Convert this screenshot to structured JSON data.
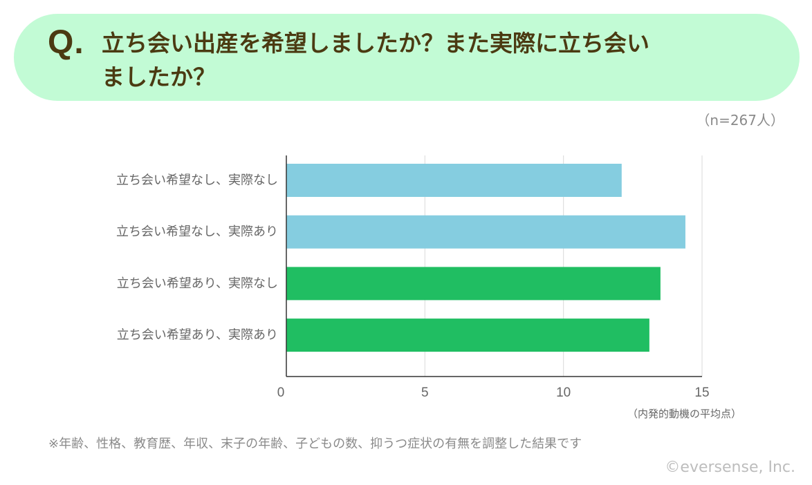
{
  "header": {
    "q_label": "Q.",
    "question_line1": "立ち会い出産を希望しましたか？また実際に立ち会い",
    "question_line2": "ましたか？"
  },
  "sample_note": "（n=267人）",
  "chart_data": {
    "type": "bar",
    "orientation": "horizontal",
    "categories": [
      "立ち会い希望なし、実際なし",
      "立ち会い希望なし、実際あり",
      "立ち会い希望あり、実際なし",
      "立ち会い希望あり、実際あり"
    ],
    "values": [
      12.1,
      14.4,
      13.5,
      13.1
    ],
    "bar_colors": [
      "#85cde0",
      "#85cde0",
      "#20be62",
      "#20be62"
    ],
    "xlim": [
      0,
      15
    ],
    "xticks": [
      0,
      5,
      10,
      15
    ],
    "xlabel": "（内発的動機の平均点）",
    "grid": true,
    "gridline_color": "#d9d9d9"
  },
  "footnote": "※年齢、性格、教育歴、年収、末子の年齢、子どもの数、抑うつ症状の有無を調整した結果です",
  "copyright": "©eversense, Inc.",
  "colors": {
    "header_bg": "#c2fbd5",
    "header_text": "#4b3a12",
    "muted_text": "#8a8a8a"
  }
}
